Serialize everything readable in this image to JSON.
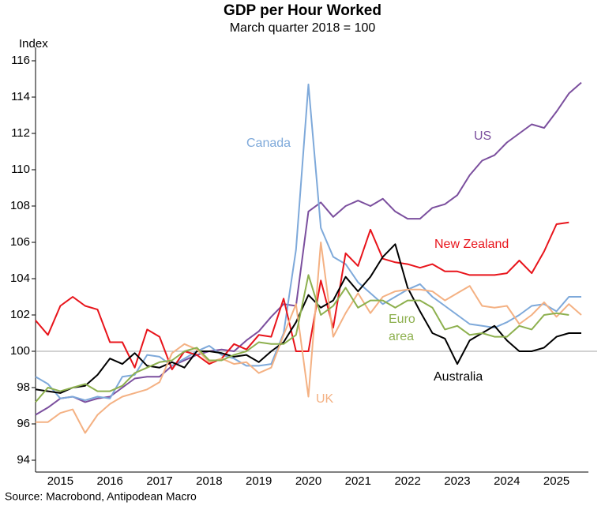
{
  "chart_data": {
    "type": "line",
    "title": "GDP per Hour Worked",
    "subtitle": "March quarter 2018 = 100",
    "y_axis_label": "Index",
    "source": "Source: Macrobond, Antipodean Macro",
    "x": [
      2015,
      2015.25,
      2015.5,
      2015.75,
      2016,
      2016.25,
      2016.5,
      2016.75,
      2017,
      2017.25,
      2017.5,
      2017.75,
      2018,
      2018.25,
      2018.5,
      2018.75,
      2019,
      2019.25,
      2019.5,
      2019.75,
      2020,
      2020.25,
      2020.5,
      2020.75,
      2021,
      2021.25,
      2021.5,
      2021.75,
      2022,
      2022.25,
      2022.5,
      2022.75,
      2023,
      2023.25,
      2023.5,
      2023.75,
      2024,
      2024.25,
      2024.5,
      2024.75,
      2025,
      2025.25,
      2025.5,
      2025.75,
      2026
    ],
    "xlim": [
      2015,
      2026
    ],
    "xticks": [
      {
        "value": 2015.5,
        "label": "2015"
      },
      {
        "value": 2016.5,
        "label": "2016"
      },
      {
        "value": 2017.5,
        "label": "2017"
      },
      {
        "value": 2018.5,
        "label": "2018"
      },
      {
        "value": 2019.5,
        "label": "2019"
      },
      {
        "value": 2020.5,
        "label": "2020"
      },
      {
        "value": 2021.5,
        "label": "2021"
      },
      {
        "value": 2022.5,
        "label": "2022"
      },
      {
        "value": 2023.5,
        "label": "2023"
      },
      {
        "value": 2024.5,
        "label": "2024"
      },
      {
        "value": 2025.5,
        "label": "2025"
      }
    ],
    "ylim": [
      93.4,
      116.2
    ],
    "yticks": [
      94,
      96,
      98,
      100,
      102,
      104,
      106,
      108,
      110,
      112,
      114,
      116
    ],
    "reference_line": 100,
    "series": [
      {
        "name": "US",
        "color": "#7b4f9e",
        "values": [
          96.5,
          96.9,
          97.4,
          97.5,
          97.2,
          97.4,
          97.5,
          98.0,
          98.5,
          98.6,
          98.6,
          99.2,
          99.5,
          99.8,
          100.0,
          100.1,
          100.0,
          100.6,
          101.1,
          101.9,
          102.6,
          102.5,
          107.7,
          108.2,
          107.4,
          108.0,
          108.3,
          108.0,
          108.4,
          107.7,
          107.3,
          107.3,
          107.9,
          108.1,
          108.6,
          109.7,
          110.5,
          110.8,
          111.5,
          112.0,
          112.5,
          112.3,
          113.2,
          114.2,
          114.8
        ]
      },
      {
        "name": "Canada",
        "color": "#7ea9da",
        "values": [
          98.6,
          98.2,
          97.4,
          97.5,
          97.3,
          97.5,
          97.4,
          98.6,
          98.7,
          99.8,
          99.7,
          99.2,
          99.6,
          100.0,
          100.3,
          99.8,
          99.6,
          99.2,
          99.2,
          99.3,
          101.0,
          105.6,
          114.7,
          106.8,
          105.2,
          104.8,
          103.8,
          103.2,
          102.6,
          103.0,
          103.4,
          103.7,
          103.0,
          102.5,
          102.0,
          101.5,
          101.4,
          101.3,
          101.6,
          102.0,
          102.5,
          102.6,
          102.2,
          103.0,
          103.0
        ]
      },
      {
        "name": "New Zealand",
        "color": "#e8141b",
        "values": [
          101.7,
          100.9,
          102.5,
          103.0,
          102.5,
          102.3,
          100.5,
          100.5,
          99.1,
          101.2,
          100.8,
          99.0,
          100.0,
          99.8,
          99.3,
          99.6,
          100.4,
          100.1,
          100.9,
          100.8,
          102.9,
          100.0,
          100.0,
          103.9,
          101.3,
          105.4,
          104.7,
          106.7,
          105.1,
          104.9,
          104.8,
          104.6,
          104.8,
          104.4,
          104.4,
          104.2,
          104.2,
          104.2,
          104.3,
          105.0,
          104.3,
          105.5,
          107.0,
          107.1,
          null
        ]
      },
      {
        "name": "Australia",
        "color": "#000000",
        "values": [
          97.9,
          97.8,
          97.7,
          98.0,
          98.1,
          98.7,
          99.6,
          99.3,
          99.9,
          99.2,
          99.1,
          99.4,
          99.1,
          100.0,
          100.0,
          99.9,
          99.7,
          99.8,
          99.4,
          100.0,
          100.5,
          101.6,
          103.1,
          102.4,
          102.8,
          104.1,
          103.3,
          104.1,
          105.2,
          105.9,
          103.5,
          102.2,
          101.0,
          100.7,
          99.3,
          100.6,
          101.0,
          101.4,
          100.6,
          100.0,
          100.0,
          100.2,
          100.8,
          101.0,
          101.0
        ]
      },
      {
        "name": "UK",
        "color": "#f4b183",
        "values": [
          96.1,
          96.1,
          96.6,
          96.8,
          95.5,
          96.5,
          97.1,
          97.5,
          97.7,
          97.9,
          98.3,
          99.9,
          100.4,
          100.1,
          99.4,
          99.6,
          99.3,
          99.4,
          98.8,
          99.1,
          100.9,
          102.6,
          97.5,
          106.0,
          100.8,
          102.1,
          103.2,
          102.1,
          103.0,
          103.3,
          103.4,
          103.4,
          103.3,
          102.8,
          103.2,
          103.6,
          102.5,
          102.4,
          102.5,
          101.5,
          102.0,
          102.7,
          101.9,
          102.6,
          102.0
        ]
      },
      {
        "name": "Euro area",
        "color": "#8db04e",
        "values": [
          97.2,
          98.0,
          97.8,
          98.0,
          98.2,
          97.8,
          97.8,
          98.1,
          98.8,
          99.1,
          99.4,
          99.5,
          100.0,
          100.2,
          99.5,
          99.5,
          99.8,
          100.0,
          100.5,
          100.4,
          100.4,
          100.9,
          104.2,
          102.0,
          102.5,
          103.5,
          102.4,
          102.8,
          102.8,
          102.4,
          102.8,
          102.8,
          102.4,
          101.2,
          101.4,
          100.9,
          101.0,
          100.8,
          100.8,
          101.4,
          101.2,
          102.0,
          102.1,
          102.0,
          null
        ]
      }
    ]
  }
}
